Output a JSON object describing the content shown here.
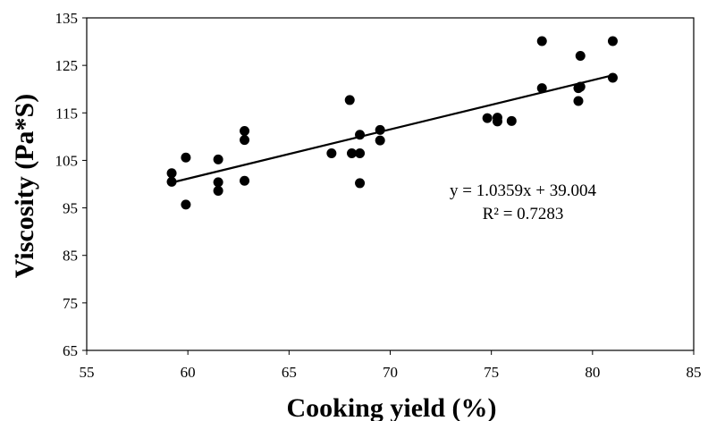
{
  "chart_data": {
    "type": "scatter",
    "xlabel": "Cooking yield (%)",
    "ylabel": "Viscosity (Pa*S)",
    "xlim": [
      55,
      85
    ],
    "ylim": [
      65,
      135
    ],
    "x_ticks": [
      55,
      60,
      65,
      70,
      75,
      80,
      85
    ],
    "y_ticks": [
      65,
      75,
      85,
      95,
      105,
      115,
      125,
      135
    ],
    "grid": false,
    "legend": "none",
    "marker_color": "#000000",
    "points": [
      {
        "x": 59.2,
        "y": 102.3
      },
      {
        "x": 59.2,
        "y": 100.5
      },
      {
        "x": 59.9,
        "y": 105.6
      },
      {
        "x": 59.9,
        "y": 95.7
      },
      {
        "x": 61.5,
        "y": 105.2
      },
      {
        "x": 61.5,
        "y": 100.4
      },
      {
        "x": 61.5,
        "y": 98.6
      },
      {
        "x": 62.8,
        "y": 111.2
      },
      {
        "x": 62.8,
        "y": 109.3
      },
      {
        "x": 62.8,
        "y": 100.7
      },
      {
        "x": 67.1,
        "y": 106.5
      },
      {
        "x": 68.0,
        "y": 117.7
      },
      {
        "x": 68.1,
        "y": 106.5
      },
      {
        "x": 68.5,
        "y": 110.4
      },
      {
        "x": 68.5,
        "y": 106.5
      },
      {
        "x": 68.5,
        "y": 100.2
      },
      {
        "x": 69.5,
        "y": 111.4
      },
      {
        "x": 69.5,
        "y": 109.2
      },
      {
        "x": 74.8,
        "y": 113.9
      },
      {
        "x": 75.3,
        "y": 114.0
      },
      {
        "x": 75.3,
        "y": 113.2
      },
      {
        "x": 76.0,
        "y": 113.3
      },
      {
        "x": 77.5,
        "y": 130.1
      },
      {
        "x": 77.5,
        "y": 120.2
      },
      {
        "x": 79.3,
        "y": 120.2
      },
      {
        "x": 79.3,
        "y": 117.5
      },
      {
        "x": 79.4,
        "y": 127.0
      },
      {
        "x": 79.4,
        "y": 120.5
      },
      {
        "x": 81.0,
        "y": 130.1
      },
      {
        "x": 81.0,
        "y": 122.4
      }
    ],
    "trendline": {
      "slope": 1.0359,
      "intercept": 39.004,
      "x_range": [
        59.2,
        81.0
      ],
      "equation": "y = 1.0359x + 39.004",
      "r_squared": "R² = 0.7283"
    }
  }
}
